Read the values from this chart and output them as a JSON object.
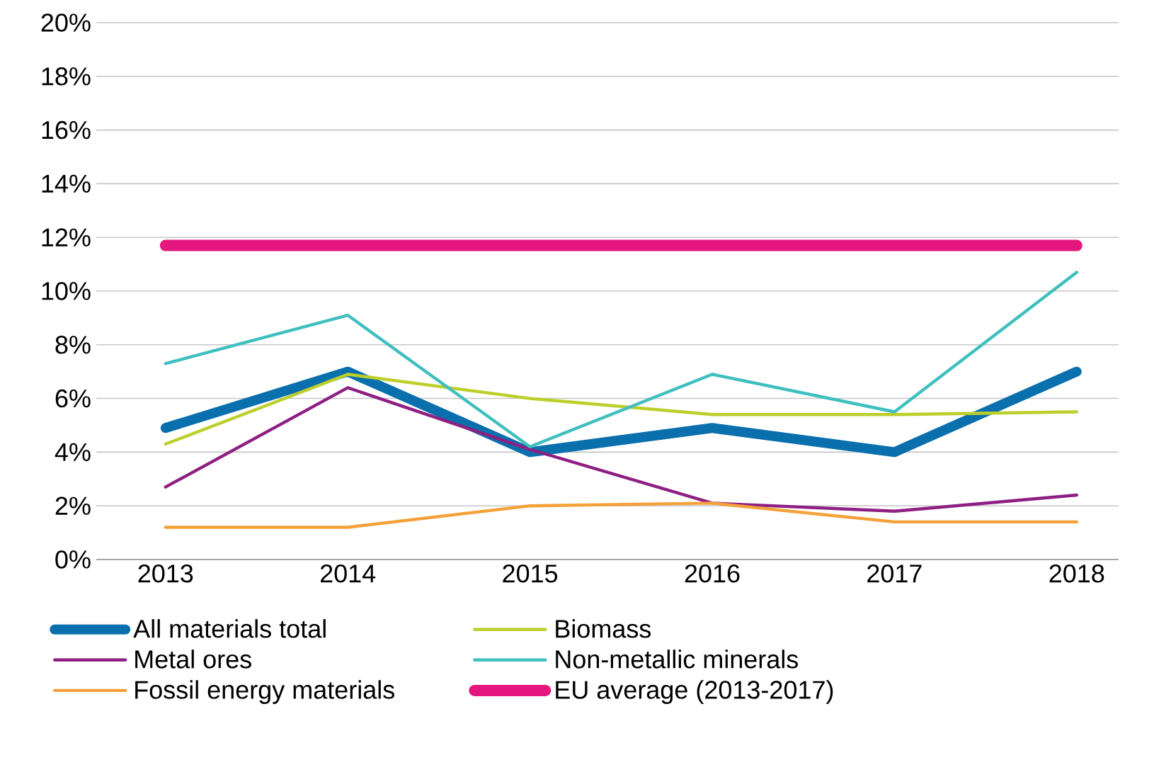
{
  "chart_data": {
    "type": "line",
    "categories": [
      "2013",
      "2014",
      "2015",
      "2016",
      "2017",
      "2018"
    ],
    "series": [
      {
        "name": "All materials total",
        "color": "#0a6fad",
        "values": [
          4.9,
          7.0,
          4.0,
          4.9,
          4.0,
          7.0
        ]
      },
      {
        "name": "Biomass",
        "color": "#bccf2b",
        "values": [
          4.3,
          6.9,
          6.0,
          5.4,
          5.4,
          5.5
        ]
      },
      {
        "name": "Metal ores",
        "color": "#8e1f83",
        "values": [
          2.7,
          6.4,
          4.1,
          2.1,
          1.8,
          2.4
        ]
      },
      {
        "name": "Non-metallic minerals",
        "color": "#3fbfbf",
        "values": [
          7.3,
          9.1,
          4.2,
          6.9,
          5.5,
          10.7
        ]
      },
      {
        "name": "Fossil energy materials",
        "color": "#f4a13a",
        "values": [
          1.2,
          1.2,
          2.0,
          2.1,
          1.4,
          1.4
        ]
      },
      {
        "name": "EU average (2013-2017)",
        "color": "#e5177e",
        "values": [
          11.7,
          11.7,
          11.7,
          11.7,
          11.7,
          11.7
        ]
      }
    ],
    "ylim": [
      0,
      20
    ],
    "yticks": [
      {
        "value": 0,
        "label": "0%"
      },
      {
        "value": 2,
        "label": "2%"
      },
      {
        "value": 4,
        "label": "4%"
      },
      {
        "value": 6,
        "label": "6%"
      },
      {
        "value": 8,
        "label": "8%"
      },
      {
        "value": 10,
        "label": "10%"
      },
      {
        "value": 12,
        "label": "12%"
      },
      {
        "value": 14,
        "label": "14%"
      },
      {
        "value": 16,
        "label": "16%"
      },
      {
        "value": 18,
        "label": "18%"
      },
      {
        "value": 20,
        "label": "20%"
      }
    ],
    "grid": "y",
    "legend": "bottom",
    "marker": "none",
    "line_style": "solid"
  }
}
